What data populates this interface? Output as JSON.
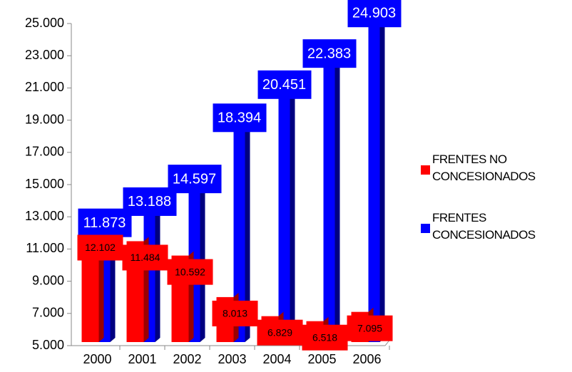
{
  "chart_data": {
    "type": "bar",
    "categories": [
      "2000",
      "2001",
      "2002",
      "2003",
      "2004",
      "2005",
      "2006"
    ],
    "series": [
      {
        "name": "FRENTES NO CONCESIONADOS",
        "color": "#ff0000",
        "values": [
          12102,
          11484,
          10592,
          8013,
          6829,
          6518,
          7095
        ],
        "value_labels": [
          "12.102",
          "11.484",
          "10.592",
          "8.013",
          "6.829",
          "6.518",
          "7.095"
        ]
      },
      {
        "name": "FRENTES CONCESIONADOS",
        "color": "#0000ff",
        "values": [
          11873,
          13188,
          14597,
          18394,
          20451,
          22383,
          24903
        ],
        "value_labels": [
          "11.873",
          "13.188",
          "14.597",
          "18.394",
          "20.451",
          "22.383",
          "24.903"
        ]
      }
    ],
    "ylim": [
      5000,
      25000
    ],
    "yticks": [
      {
        "value": 5000,
        "label": "5.000"
      },
      {
        "value": 7000,
        "label": "7.000"
      },
      {
        "value": 9000,
        "label": "9.000"
      },
      {
        "value": 11000,
        "label": "11.000"
      },
      {
        "value": 13000,
        "label": "13.000"
      },
      {
        "value": 15000,
        "label": "15.000"
      },
      {
        "value": 17000,
        "label": "17.000"
      },
      {
        "value": 19000,
        "label": "19.000"
      },
      {
        "value": 21000,
        "label": "21.000"
      },
      {
        "value": 23000,
        "label": "23.000"
      },
      {
        "value": 25000,
        "label": "25.000"
      }
    ],
    "legend": "right"
  }
}
